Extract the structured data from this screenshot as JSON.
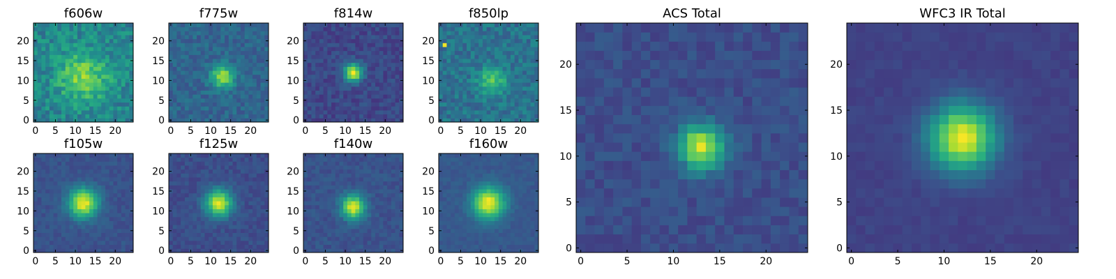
{
  "chart_data": [
    {
      "type": "heatmap",
      "title": "f606w",
      "grid_size": 25,
      "xlim": [
        0,
        24
      ],
      "ylim": [
        0,
        24
      ],
      "x_ticks": [
        0,
        5,
        10,
        15,
        20
      ],
      "y_ticks": [
        0,
        5,
        10,
        15,
        20
      ],
      "colormap": "viridis",
      "peak": [
        12,
        11
      ],
      "sigma": 4.5,
      "amplitude": 0.35,
      "background": 0.45,
      "noise": 0.25,
      "seed": 11
    },
    {
      "type": "heatmap",
      "title": "f775w",
      "grid_size": 25,
      "xlim": [
        0,
        24
      ],
      "ylim": [
        0,
        24
      ],
      "x_ticks": [
        0,
        5,
        10,
        15,
        20
      ],
      "y_ticks": [
        0,
        5,
        10,
        15,
        20
      ],
      "colormap": "viridis",
      "peak": [
        13,
        11
      ],
      "sigma": 2.0,
      "amplitude": 0.55,
      "background": 0.33,
      "noise": 0.16,
      "seed": 23
    },
    {
      "type": "heatmap",
      "title": "f814w",
      "grid_size": 25,
      "xlim": [
        0,
        24
      ],
      "ylim": [
        0,
        24
      ],
      "x_ticks": [
        0,
        5,
        10,
        15,
        20
      ],
      "y_ticks": [
        0,
        5,
        10,
        15,
        20
      ],
      "colormap": "viridis",
      "peak": [
        12,
        12
      ],
      "sigma": 1.6,
      "amplitude": 0.75,
      "background": 0.22,
      "noise": 0.14,
      "seed": 37
    },
    {
      "type": "heatmap",
      "title": "f850lp",
      "grid_size": 25,
      "xlim": [
        0,
        24
      ],
      "ylim": [
        0,
        24
      ],
      "x_ticks": [
        0,
        5,
        10,
        15,
        20
      ],
      "y_ticks": [
        0,
        5,
        10,
        15,
        20
      ],
      "colormap": "viridis",
      "peak": [
        13,
        10
      ],
      "sigma": 2.5,
      "amplitude": 0.35,
      "background": 0.38,
      "noise": 0.2,
      "seed": 41,
      "hotspot": [
        1,
        19
      ]
    },
    {
      "type": "heatmap",
      "title": "f105w",
      "grid_size": 25,
      "xlim": [
        0,
        24
      ],
      "ylim": [
        0,
        24
      ],
      "x_ticks": [
        0,
        5,
        10,
        15,
        20
      ],
      "y_ticks": [
        0,
        5,
        10,
        15,
        20
      ],
      "colormap": "viridis",
      "peak": [
        12,
        12
      ],
      "sigma": 2.6,
      "amplitude": 0.72,
      "background": 0.26,
      "noise": 0.09,
      "seed": 53
    },
    {
      "type": "heatmap",
      "title": "f125w",
      "grid_size": 25,
      "xlim": [
        0,
        24
      ],
      "ylim": [
        0,
        24
      ],
      "x_ticks": [
        0,
        5,
        10,
        15,
        20
      ],
      "y_ticks": [
        0,
        5,
        10,
        15,
        20
      ],
      "colormap": "viridis",
      "peak": [
        12,
        12
      ],
      "sigma": 2.4,
      "amplitude": 0.7,
      "background": 0.24,
      "noise": 0.1,
      "seed": 67
    },
    {
      "type": "heatmap",
      "title": "f140w",
      "grid_size": 25,
      "xlim": [
        0,
        24
      ],
      "ylim": [
        0,
        24
      ],
      "x_ticks": [
        0,
        5,
        10,
        15,
        20
      ],
      "y_ticks": [
        0,
        5,
        10,
        15,
        20
      ],
      "colormap": "viridis",
      "peak": [
        12,
        11
      ],
      "sigma": 2.1,
      "amplitude": 0.7,
      "background": 0.26,
      "noise": 0.1,
      "seed": 71
    },
    {
      "type": "heatmap",
      "title": "f160w",
      "grid_size": 25,
      "xlim": [
        0,
        24
      ],
      "ylim": [
        0,
        24
      ],
      "x_ticks": [
        0,
        5,
        10,
        15,
        20
      ],
      "y_ticks": [
        0,
        5,
        10,
        15,
        20
      ],
      "colormap": "viridis",
      "peak": [
        12,
        12
      ],
      "sigma": 2.8,
      "amplitude": 0.72,
      "background": 0.28,
      "noise": 0.07,
      "seed": 83
    },
    {
      "type": "heatmap",
      "title": "ACS Total",
      "grid_size": 25,
      "xlim": [
        0,
        24
      ],
      "ylim": [
        0,
        24
      ],
      "x_ticks": [
        0,
        5,
        10,
        15,
        20
      ],
      "y_ticks": [
        0,
        5,
        10,
        15,
        20
      ],
      "colormap": "viridis",
      "peak": [
        13,
        11
      ],
      "sigma": 1.7,
      "amplitude": 0.7,
      "background": 0.24,
      "noise": 0.11,
      "seed": 97
    },
    {
      "type": "heatmap",
      "title": "WFC3 IR Total",
      "grid_size": 25,
      "xlim": [
        0,
        24
      ],
      "ylim": [
        0,
        24
      ],
      "x_ticks": [
        0,
        5,
        10,
        15,
        20
      ],
      "y_ticks": [
        0,
        5,
        10,
        15,
        20
      ],
      "colormap": "viridis",
      "peak": [
        12,
        12
      ],
      "sigma": 2.5,
      "amplitude": 0.78,
      "background": 0.2,
      "noise": 0.05,
      "seed": 101
    }
  ]
}
